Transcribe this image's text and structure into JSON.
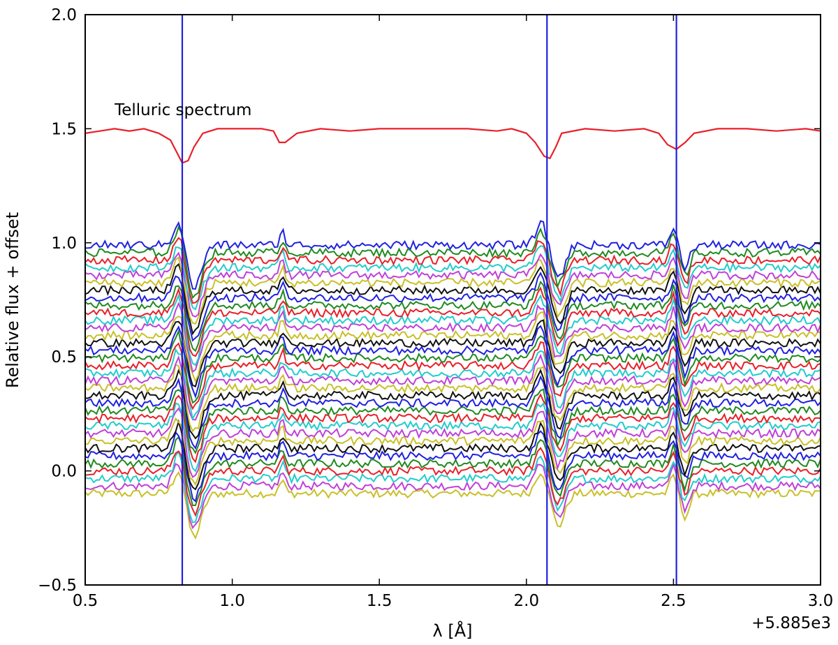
{
  "chart_data": {
    "type": "line",
    "xlabel": "λ [Å]",
    "ylabel": "Relative flux + offset",
    "x_offset_text": "+5.885e3",
    "xlim": [
      0.5,
      3.0
    ],
    "ylim": [
      -0.5,
      2.0
    ],
    "xticks": [
      0.5,
      1.0,
      1.5,
      2.0,
      2.5,
      3.0
    ],
    "xtick_labels": [
      "0.5",
      "1.0",
      "1.5",
      "2.0",
      "2.5",
      "3.0"
    ],
    "yticks": [
      -0.5,
      0.0,
      0.5,
      1.0,
      1.5,
      2.0
    ],
    "ytick_labels": [
      "−0.5",
      "0.0",
      "0.5",
      "1.0",
      "1.5",
      "2.0"
    ],
    "grid": false,
    "annotation": {
      "text": "Telluric spectrum",
      "x": 0.6,
      "y": 1.56
    },
    "vertical_lines": {
      "color": "#2020e0",
      "x": [
        0.83,
        2.07,
        2.51
      ]
    },
    "telluric": {
      "color": "#e8202a",
      "baseline": 1.5,
      "points": [
        [
          0.5,
          1.48
        ],
        [
          0.55,
          1.49
        ],
        [
          0.6,
          1.5
        ],
        [
          0.65,
          1.49
        ],
        [
          0.7,
          1.5
        ],
        [
          0.75,
          1.48
        ],
        [
          0.79,
          1.45
        ],
        [
          0.81,
          1.4
        ],
        [
          0.83,
          1.35
        ],
        [
          0.85,
          1.36
        ],
        [
          0.87,
          1.42
        ],
        [
          0.9,
          1.48
        ],
        [
          0.95,
          1.5
        ],
        [
          1.0,
          1.5
        ],
        [
          1.05,
          1.5
        ],
        [
          1.1,
          1.5
        ],
        [
          1.14,
          1.49
        ],
        [
          1.16,
          1.44
        ],
        [
          1.18,
          1.44
        ],
        [
          1.22,
          1.48
        ],
        [
          1.3,
          1.5
        ],
        [
          1.4,
          1.49
        ],
        [
          1.5,
          1.5
        ],
        [
          1.6,
          1.5
        ],
        [
          1.7,
          1.5
        ],
        [
          1.8,
          1.5
        ],
        [
          1.9,
          1.49
        ],
        [
          1.95,
          1.5
        ],
        [
          2.0,
          1.48
        ],
        [
          2.03,
          1.44
        ],
        [
          2.06,
          1.38
        ],
        [
          2.08,
          1.37
        ],
        [
          2.1,
          1.42
        ],
        [
          2.12,
          1.48
        ],
        [
          2.2,
          1.5
        ],
        [
          2.3,
          1.49
        ],
        [
          2.4,
          1.5
        ],
        [
          2.45,
          1.48
        ],
        [
          2.48,
          1.43
        ],
        [
          2.51,
          1.41
        ],
        [
          2.54,
          1.44
        ],
        [
          2.57,
          1.48
        ],
        [
          2.65,
          1.5
        ],
        [
          2.75,
          1.5
        ],
        [
          2.85,
          1.49
        ],
        [
          2.95,
          1.5
        ],
        [
          3.0,
          1.49
        ]
      ]
    },
    "stellar_series": {
      "count": 34,
      "top_offset": 0.99,
      "offset_step": 0.033,
      "colors": [
        "#2020e0",
        "#1f8a1f",
        "#e8202a",
        "#22cccc",
        "#c040d8",
        "#c8c028",
        "#111111"
      ],
      "features": [
        {
          "center": 0.82,
          "width": 0.025,
          "depth": -0.12
        },
        {
          "center": 0.87,
          "width": 0.035,
          "depth": 0.19
        },
        {
          "center": 1.17,
          "width": 0.012,
          "depth": -0.06
        },
        {
          "center": 2.05,
          "width": 0.025,
          "depth": -0.1
        },
        {
          "center": 2.11,
          "width": 0.03,
          "depth": 0.14
        },
        {
          "center": 2.5,
          "width": 0.015,
          "depth": -0.08
        },
        {
          "center": 2.54,
          "width": 0.02,
          "depth": 0.1
        }
      ],
      "noise_amplitude": 0.018
    }
  }
}
